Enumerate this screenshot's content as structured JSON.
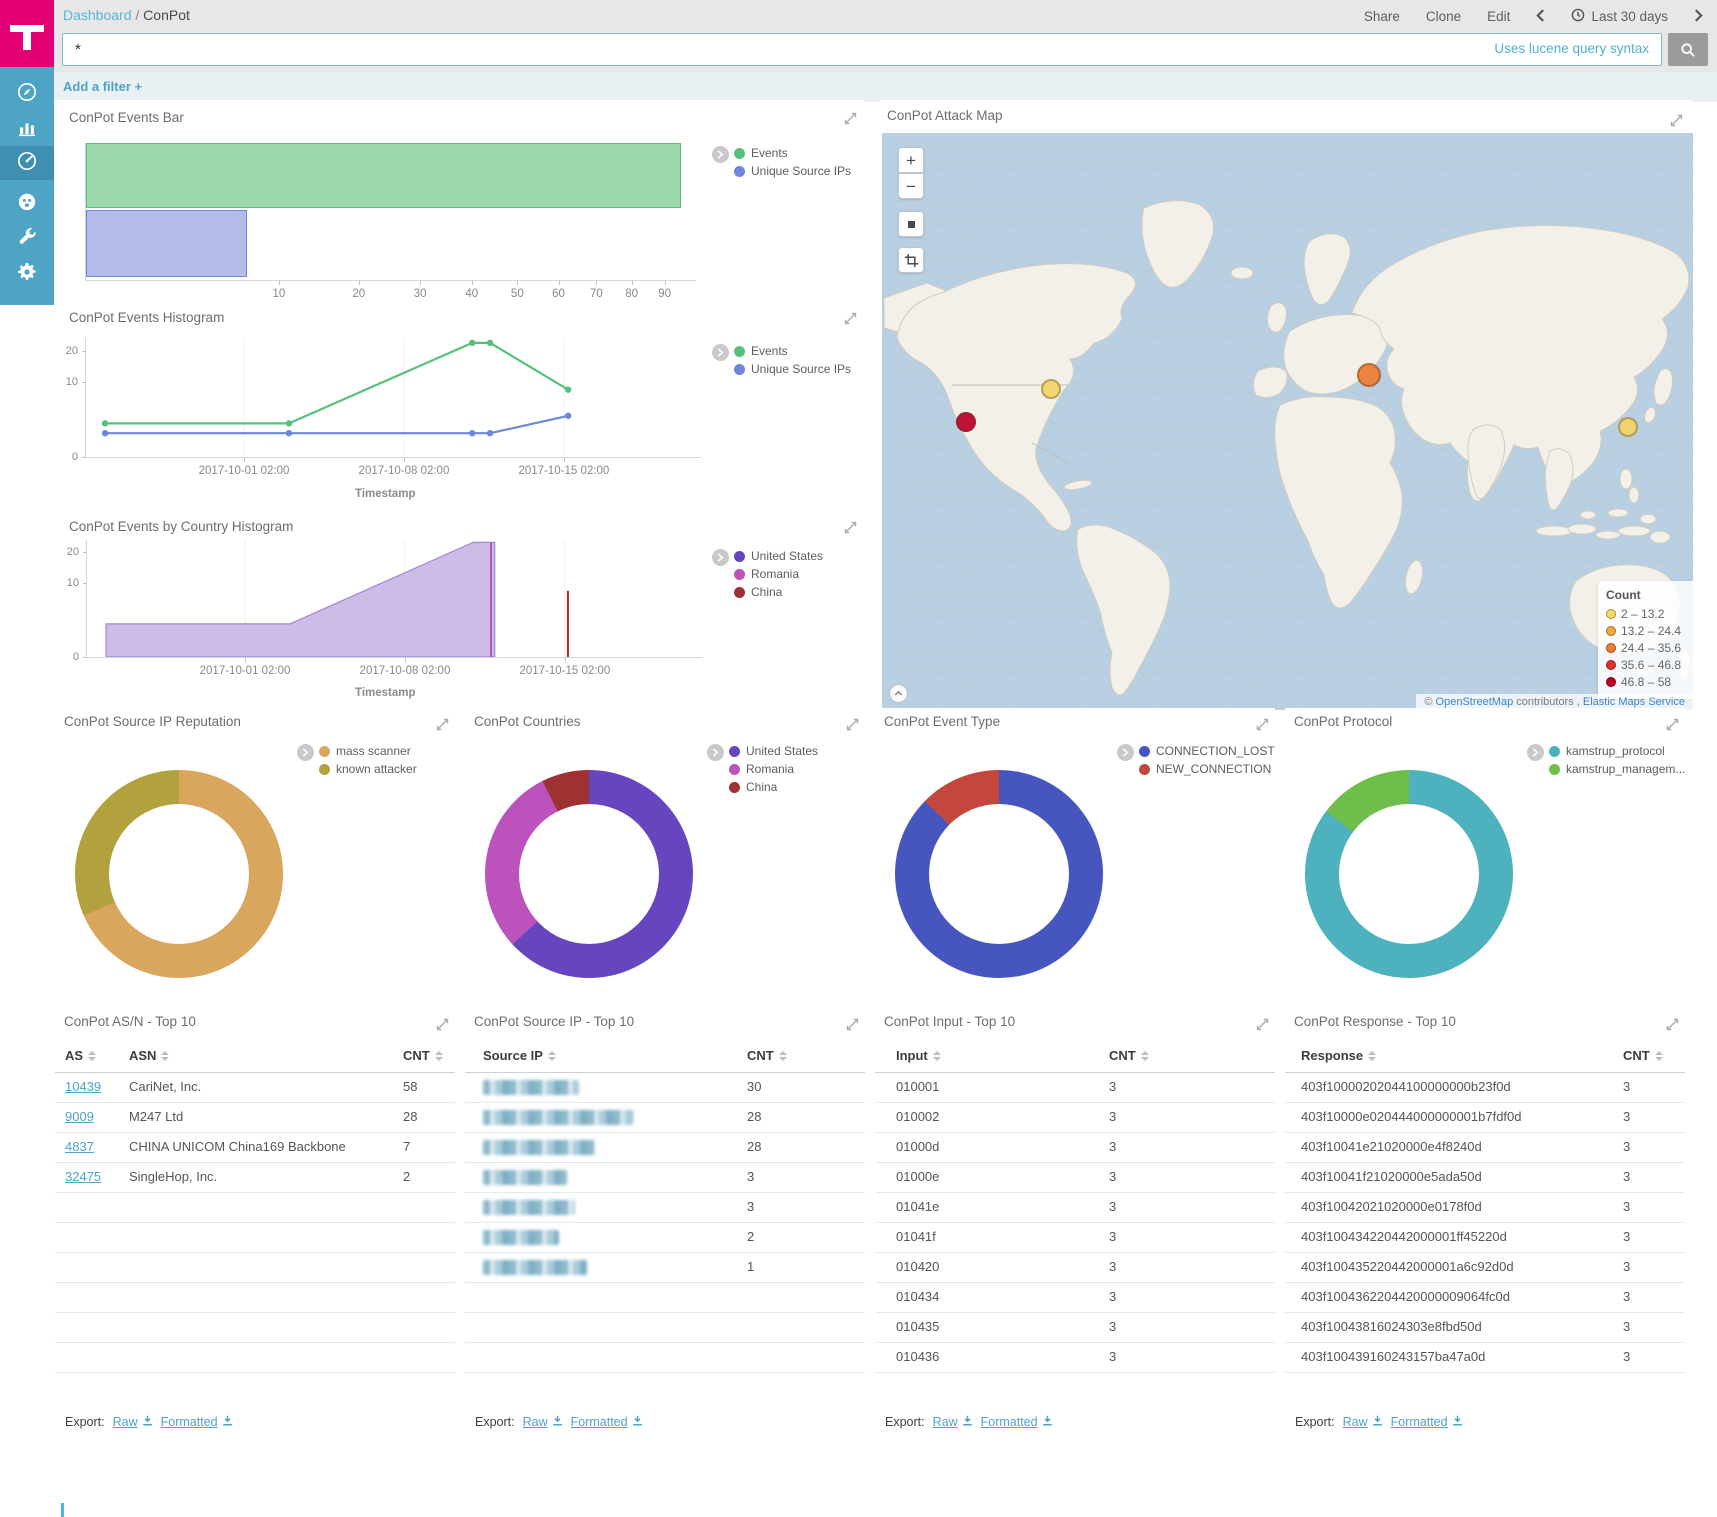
{
  "header": {
    "breadcrumb": {
      "parent": "Dashboard",
      "separator": "/",
      "current": "ConPot"
    },
    "actions": [
      "Share",
      "Clone",
      "Edit"
    ],
    "time_picker": {
      "label": "Last 30 days"
    },
    "search": {
      "value": "*",
      "hint": "Uses lucene query syntax"
    },
    "filter_bar": {
      "add_label": "Add a filter",
      "plus_glyph": "+"
    }
  },
  "sidebar": {
    "items": [
      {
        "name": "discover",
        "icon": "compass-icon",
        "active": false
      },
      {
        "name": "visualize",
        "icon": "bar-chart-icon",
        "active": false
      },
      {
        "name": "dashboard",
        "icon": "gauge-icon",
        "active": true
      },
      {
        "name": "timelion",
        "icon": "timelion-face-icon",
        "active": false
      },
      {
        "name": "dev-tools",
        "icon": "wrench-icon",
        "active": false
      },
      {
        "name": "management",
        "icon": "gear-icon",
        "active": false
      }
    ]
  },
  "chart_data": [
    {
      "id": "events_bar",
      "type": "bar",
      "orientation": "horizontal",
      "title": "ConPot Events Bar",
      "category": "ConPot",
      "x_scale": "sqrt",
      "x_max": 100,
      "x_ticks": [
        10,
        20,
        30,
        40,
        50,
        60,
        70,
        80,
        90
      ],
      "series": [
        {
          "name": "Events",
          "value": 95,
          "color": "#57c17b",
          "fill": "#9bd8ac"
        },
        {
          "name": "Unique Source IPs",
          "value": 7,
          "color": "#6f87d8",
          "fill": "#b3bbe8"
        }
      ]
    },
    {
      "id": "events_histogram",
      "type": "line",
      "title": "ConPot Events Histogram",
      "xlabel": "Timestamp",
      "y_scale": "sqrt",
      "y_max": 25,
      "y_ticks": [
        0,
        10,
        20
      ],
      "x_tick_labels": [
        "2017-10-01 02:00",
        "2017-10-08 02:00",
        "2017-10-15 02:00"
      ],
      "x_tick_pos": [
        0.257,
        0.517,
        0.777
      ],
      "series": [
        {
          "name": "Events",
          "color": "#57c17b",
          "points": [
            [
              0.031,
              2
            ],
            [
              0.33,
              2
            ],
            [
              0.628,
              23
            ],
            [
              0.657,
              23
            ],
            [
              0.784,
              8
            ]
          ]
        },
        {
          "name": "Unique Source IPs",
          "color": "#6f87d8",
          "points": [
            [
              0.031,
              1
            ],
            [
              0.33,
              1
            ],
            [
              0.628,
              1
            ],
            [
              0.657,
              1
            ],
            [
              0.784,
              3
            ]
          ]
        }
      ]
    },
    {
      "id": "events_by_country_histogram",
      "type": "area",
      "title": "ConPot Events by Country Histogram",
      "xlabel": "Timestamp",
      "y_scale": "sqrt",
      "y_max": 25,
      "y_ticks": [
        0,
        10,
        20
      ],
      "x_tick_labels": [
        "2017-10-01 02:00",
        "2017-10-08 02:00",
        "2017-10-15 02:00"
      ],
      "x_tick_pos": [
        0.257,
        0.517,
        0.777
      ],
      "series": [
        {
          "name": "United States",
          "color": "#6745be",
          "stroke": "#9f87d8",
          "fill": "#cdbbe8",
          "points": [
            [
              0.031,
              2
            ],
            [
              0.33,
              2
            ],
            [
              0.628,
              24
            ],
            [
              0.663,
              24
            ]
          ],
          "close_to_zero": true
        },
        {
          "name": "Romania",
          "color": "#bc52bc",
          "spike": true,
          "x": 0.657,
          "value": 24
        },
        {
          "name": "China",
          "color": "#9e3131",
          "spike": true,
          "x": 0.782,
          "value": 8
        }
      ]
    },
    {
      "id": "source_ip_reputation",
      "type": "pie",
      "donut": true,
      "title": "ConPot Source IP Reputation",
      "slices": [
        {
          "label": "mass scanner",
          "value": 65,
          "color": "#d8a75d"
        },
        {
          "label": "known attacker",
          "value": 30,
          "color": "#b2a23d"
        }
      ]
    },
    {
      "id": "countries",
      "type": "pie",
      "donut": true,
      "title": "ConPot Countries",
      "slices": [
        {
          "label": "United States",
          "value": 60,
          "color": "#6745be"
        },
        {
          "label": "Romania",
          "value": 28,
          "color": "#bc52bc"
        },
        {
          "label": "China",
          "value": 7,
          "color": "#9e3131"
        }
      ]
    },
    {
      "id": "event_type",
      "type": "pie",
      "donut": true,
      "title": "ConPot Event Type",
      "slices": [
        {
          "label": "CONNECTION_LOST",
          "value": 83,
          "color": "#4656be"
        },
        {
          "label": "NEW_CONNECTION",
          "value": 12,
          "color": "#c4473d"
        }
      ]
    },
    {
      "id": "protocol",
      "type": "pie",
      "donut": true,
      "title": "ConPot Protocol",
      "slices": [
        {
          "label": "kamstrup_protocol",
          "value": 81,
          "color": "#4db2bd"
        },
        {
          "label": "kamstrup_managem...",
          "value": 14,
          "color": "#6fbe4c"
        }
      ]
    },
    {
      "id": "attack_map",
      "type": "map",
      "title": "ConPot Attack Map",
      "legend": {
        "title": "Count",
        "ranges": [
          {
            "label": "2 – 13.2",
            "color": "#f6d969"
          },
          {
            "label": "13.2 – 24.4",
            "color": "#f3a83f"
          },
          {
            "label": "24.4 – 35.6",
            "color": "#ee7d30"
          },
          {
            "label": "35.6 – 46.8",
            "color": "#e23128"
          },
          {
            "label": "46.8 – 58",
            "color": "#bd0026"
          }
        ]
      },
      "markers": [
        {
          "location": "California, United States",
          "count_bucket": "46.8 – 58",
          "color": "#bd0026",
          "x": 0.104,
          "y": 0.5,
          "r": 10
        },
        {
          "location": "Central United States",
          "count_bucket": "2 – 13.2",
          "color": "#f2d566",
          "x": 0.208,
          "y": 0.443,
          "r": 10
        },
        {
          "location": "Romania",
          "count_bucket": "24.4 – 35.6",
          "color": "#ee7d30",
          "x": 0.6,
          "y": 0.419,
          "r": 12
        },
        {
          "location": "Eastern China",
          "count_bucket": "2 – 13.2",
          "color": "#f2d566",
          "x": 0.92,
          "y": 0.509,
          "r": 10
        }
      ],
      "controls": [
        {
          "name": "zoom-in",
          "glyph": "+"
        },
        {
          "name": "zoom-out",
          "glyph": "−"
        },
        {
          "name": "fit-data-bounds",
          "glyph": "square"
        },
        {
          "name": "draw-rectangle",
          "glyph": "crop"
        }
      ],
      "attribution": {
        "prefix": "©",
        "osm_link": "OpenStreetMap",
        "middle": "contributors ,",
        "ems_link": "Elastic Maps Service"
      }
    }
  ],
  "tables": [
    {
      "title": "ConPot AS/N - Top 10",
      "columns": [
        "AS",
        "ASN",
        "CNT"
      ],
      "column_offsets": [
        10,
        74,
        348
      ],
      "link_column": 0,
      "row_slots": 10,
      "rows": [
        [
          "10439",
          "CariNet, Inc.",
          "58"
        ],
        [
          "9009",
          "M247 Ltd",
          "28"
        ],
        [
          "4837",
          "CHINA UNICOM China169 Backbone",
          "7"
        ],
        [
          "32475",
          "SingleHop, Inc.",
          "2"
        ]
      ],
      "export_label": "Export:",
      "export_links": [
        "Raw",
        "Formatted"
      ]
    },
    {
      "title": "ConPot Source IP - Top 10",
      "columns": [
        "Source IP",
        "CNT"
      ],
      "column_offsets": [
        18,
        282
      ],
      "redacted_column": 0,
      "redaction_widths": [
        96,
        150,
        112,
        84,
        92,
        76,
        104
      ],
      "row_slots": 10,
      "rows": [
        [
          "[redacted]",
          "30"
        ],
        [
          "[redacted]",
          "28"
        ],
        [
          "[redacted]",
          "28"
        ],
        [
          "[redacted]",
          "3"
        ],
        [
          "[redacted]",
          "3"
        ],
        [
          "[redacted]",
          "2"
        ],
        [
          "[redacted]",
          "1"
        ]
      ],
      "export_label": "Export:",
      "export_links": [
        "Raw",
        "Formatted"
      ]
    },
    {
      "title": "ConPot Input - Top 10",
      "columns": [
        "Input",
        "CNT"
      ],
      "column_offsets": [
        21,
        234
      ],
      "row_slots": 10,
      "rows": [
        [
          "010001",
          "3"
        ],
        [
          "010002",
          "3"
        ],
        [
          "01000d",
          "3"
        ],
        [
          "01000e",
          "3"
        ],
        [
          "01041e",
          "3"
        ],
        [
          "01041f",
          "3"
        ],
        [
          "010420",
          "3"
        ],
        [
          "010434",
          "3"
        ],
        [
          "010435",
          "3"
        ],
        [
          "010436",
          "3"
        ]
      ],
      "export_label": "Export:",
      "export_links": [
        "Raw",
        "Formatted"
      ]
    },
    {
      "title": "ConPot Response - Top 10",
      "columns": [
        "Response",
        "CNT"
      ],
      "column_offsets": [
        16,
        338
      ],
      "row_slots": 10,
      "rows": [
        [
          "403f10000202044100000000b23f0d",
          "3"
        ],
        [
          "403f10000e020444000000001b7fdf0d",
          "3"
        ],
        [
          "403f10041e21020000e4f8240d",
          "3"
        ],
        [
          "403f10041f21020000e5ada50d",
          "3"
        ],
        [
          "403f10042021020000e0178f0d",
          "3"
        ],
        [
          "403f100434220442000001ff45220d",
          "3"
        ],
        [
          "403f100435220442000001a6c92d0d",
          "3"
        ],
        [
          "403f1004362204420000009064fc0d",
          "3"
        ],
        [
          "403f10043816024303e8fbd50d",
          "3"
        ],
        [
          "403f100439160243157ba47a0d",
          "3"
        ]
      ],
      "export_label": "Export:",
      "export_links": [
        "Raw",
        "Formatted"
      ]
    }
  ]
}
